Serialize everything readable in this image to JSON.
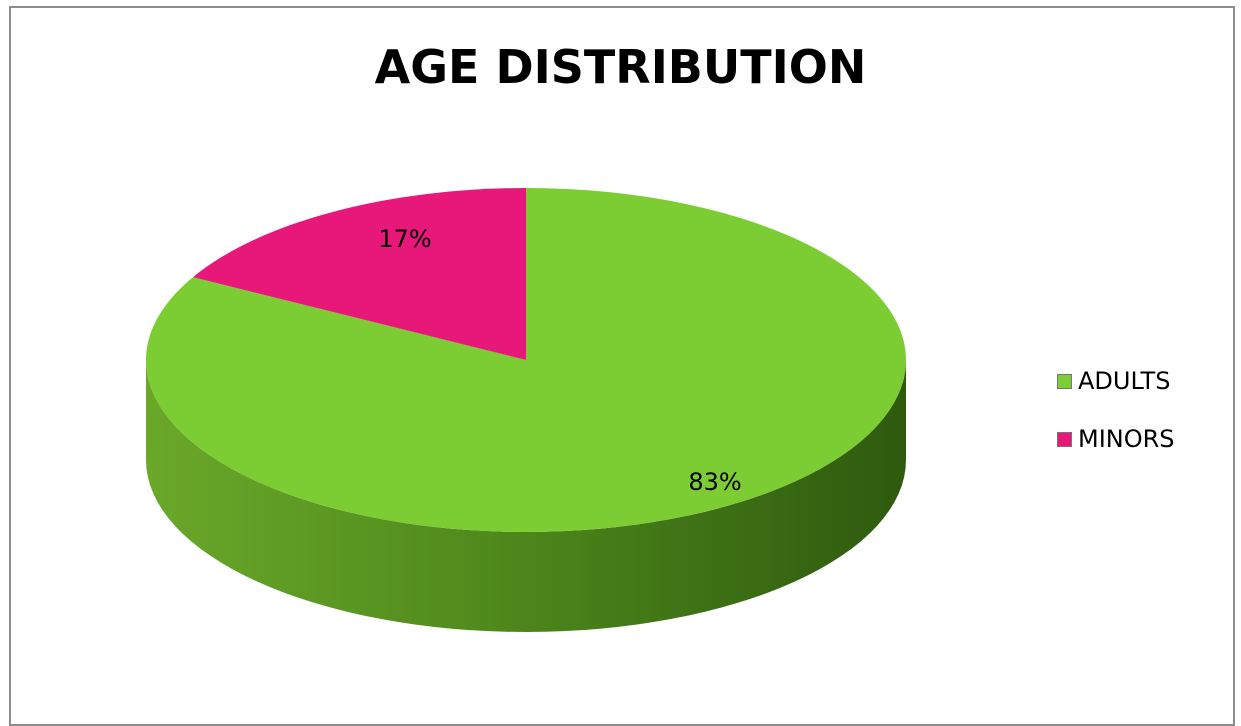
{
  "chart_data": {
    "type": "pie",
    "title": "AGE DISTRIBUTION",
    "categories": [
      "ADULTS",
      "MINORS"
    ],
    "values": [
      83,
      17
    ],
    "data_labels": [
      "83%",
      "17%"
    ],
    "colors": [
      "#7ccc33",
      "#e8177a"
    ],
    "legend_position": "right",
    "style": "3d"
  }
}
